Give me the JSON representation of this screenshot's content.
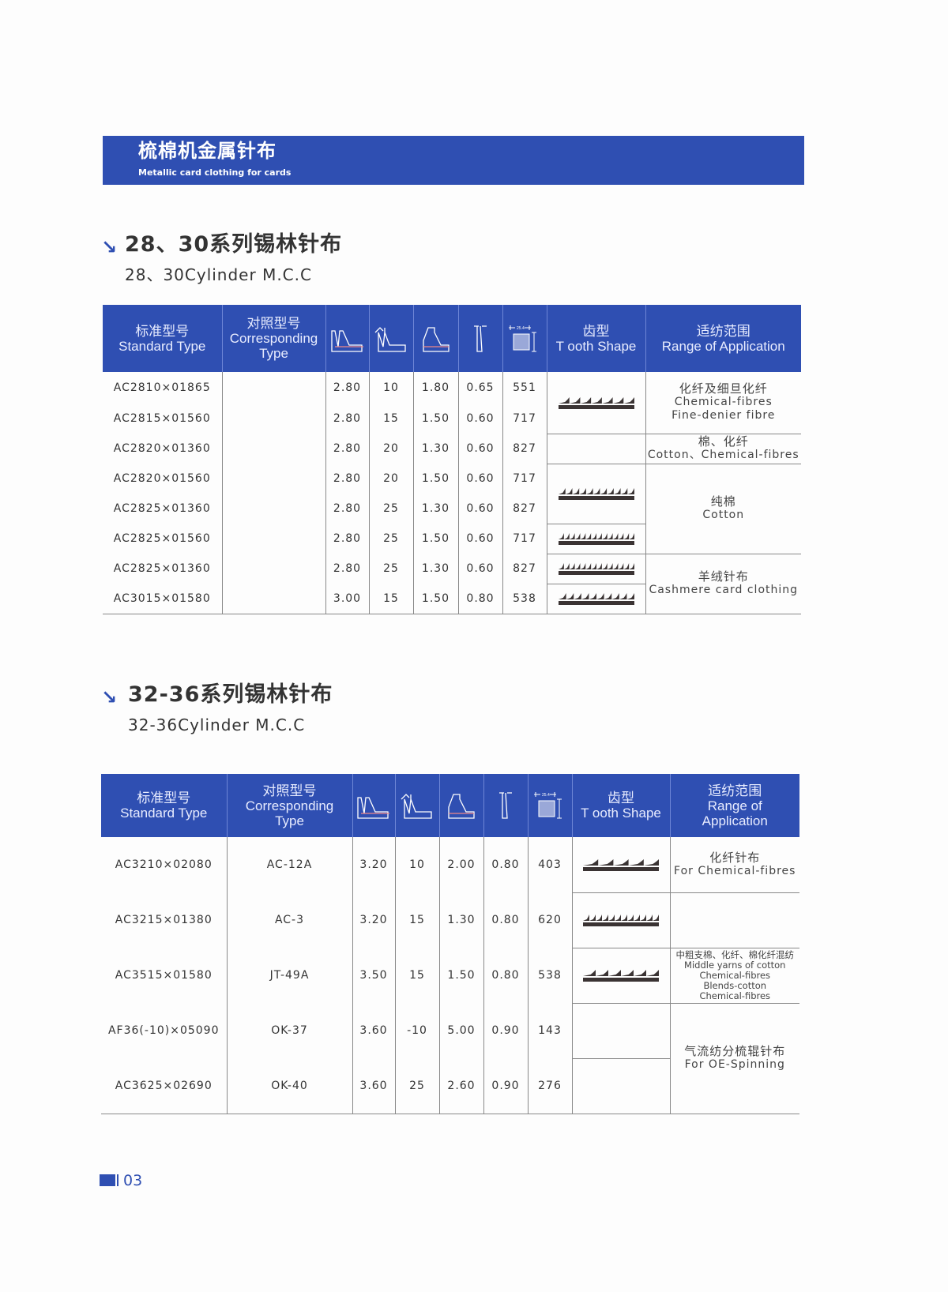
{
  "banner": {
    "title_cn": "梳棉机金属针布",
    "title_en": "Metallic card clothing for cards"
  },
  "header_labels": {
    "standard_cn": "标准型号",
    "standard_en": "Standard Type",
    "corr_cn": "对照型号",
    "corr_en": "Corresponding",
    "corr_en2": "Type",
    "tooth_cn": "齿型",
    "tooth_en": "T ooth Shape",
    "range_cn": "适纺范围",
    "range_en": "Range of Application",
    "range_en_a": "Range of",
    "range_en_b": "Application",
    "dim": "25.4"
  },
  "section1": {
    "title_cn": "28、30系列锡林针布",
    "title_en": "28、30Cylinder M.C.C",
    "rows": [
      {
        "type": "AC2810×01865",
        "corr": "",
        "h": "2.80",
        "a": "10",
        "d": "1.80",
        "w": "0.65",
        "n": "551"
      },
      {
        "type": "AC2815×01560",
        "corr": "",
        "h": "2.80",
        "a": "15",
        "d": "1.50",
        "w": "0.60",
        "n": "717"
      },
      {
        "type": "AC2820×01360",
        "corr": "",
        "h": "2.80",
        "a": "20",
        "d": "1.30",
        "w": "0.60",
        "n": "827"
      },
      {
        "type": "AC2820×01560",
        "corr": "",
        "h": "2.80",
        "a": "20",
        "d": "1.50",
        "w": "0.60",
        "n": "717"
      },
      {
        "type": "AC2825×01360",
        "corr": "",
        "h": "2.80",
        "a": "25",
        "d": "1.30",
        "w": "0.60",
        "n": "827"
      },
      {
        "type": "AC2825×01560",
        "corr": "",
        "h": "2.80",
        "a": "25",
        "d": "1.50",
        "w": "0.60",
        "n": "717"
      },
      {
        "type": "AC2825×01360",
        "corr": "",
        "h": "2.80",
        "a": "25",
        "d": "1.30",
        "w": "0.60",
        "n": "827"
      },
      {
        "type": "AC3015×01580",
        "corr": "",
        "h": "3.00",
        "a": "15",
        "d": "1.50",
        "w": "0.80",
        "n": "538"
      }
    ],
    "apps": [
      {
        "cn": "化纤及细旦化纤",
        "en1": "Chemical-fibres",
        "en2": "Fine-denier fibre"
      },
      {
        "cn": "棉、化纤",
        "en1": "Cotton、Chemical-fibres"
      },
      {
        "cn": "纯棉",
        "en1": "Cotton"
      },
      {
        "cn": "羊绒针布",
        "en1": "Cashmere card clothing"
      }
    ]
  },
  "section2": {
    "title_cn": "32-36系列锡林针布",
    "title_en": "32-36Cylinder M.C.C",
    "rows": [
      {
        "type": "AC3210×02080",
        "corr": "AC-12A",
        "h": "3.20",
        "a": "10",
        "d": "2.00",
        "w": "0.80",
        "n": "403"
      },
      {
        "type": "AC3215×01380",
        "corr": "AC-3",
        "h": "3.20",
        "a": "15",
        "d": "1.30",
        "w": "0.80",
        "n": "620"
      },
      {
        "type": "AC3515×01580",
        "corr": "JT-49A",
        "h": "3.50",
        "a": "15",
        "d": "1.50",
        "w": "0.80",
        "n": "538"
      },
      {
        "type": "AF36(-10)×05090",
        "corr": "OK-37",
        "h": "3.60",
        "a": "-10",
        "d": "5.00",
        "w": "0.90",
        "n": "143"
      },
      {
        "type": "AC3625×02690",
        "corr": "OK-40",
        "h": "3.60",
        "a": "25",
        "d": "2.60",
        "w": "0.90",
        "n": "276"
      }
    ],
    "apps": [
      {
        "cn": "化纤针布",
        "en1": "For Chemical-fibres"
      },
      {
        "cn": "中粗支棉、化纤、棉化纤混纺",
        "en1": "Middle yarns of cotton",
        "en2": "Chemical-fibres",
        "en3": "Blends-cotton",
        "en4": "Chemical-fibres"
      },
      {
        "cn": "气流纺分梳辊针布",
        "en1": "For OE-Spinning"
      }
    ]
  },
  "page_number": "03",
  "colors": {
    "brand": "#2f4fb2"
  }
}
